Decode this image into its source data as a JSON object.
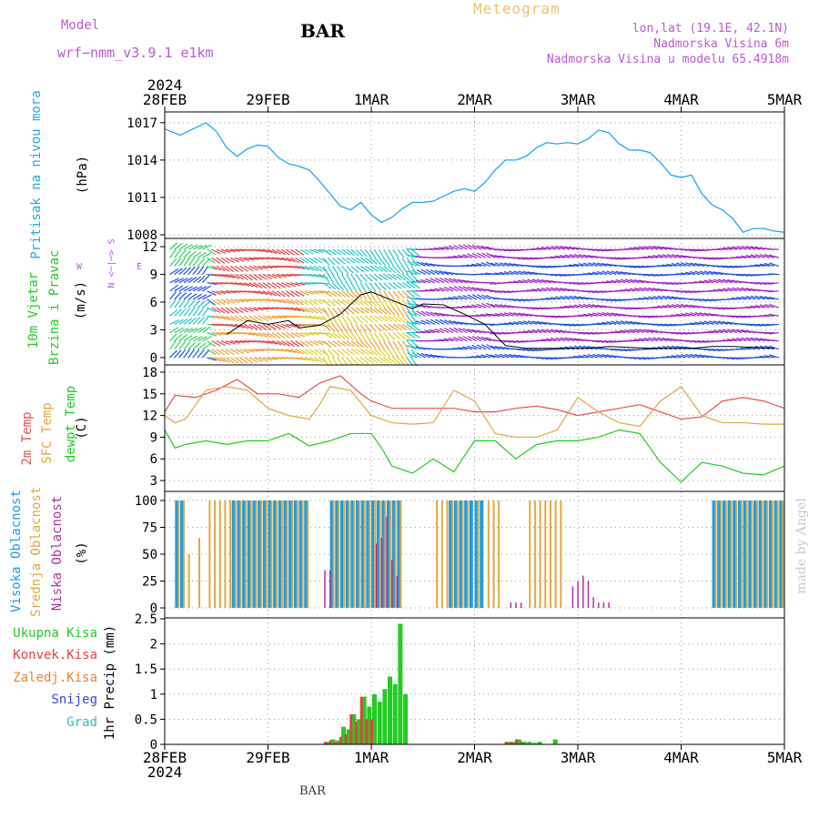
{
  "header": {
    "title": "BAR",
    "product": "Meteogram",
    "model_label": "Model",
    "model_name": "wrf−nmm_v3.9.1  e1km",
    "location": "lon,lat (19.1E, 42.1N)",
    "elevation": "Nadmorska Visina 6m",
    "model_elevation": "Nadmorska Visina u modelu 65.4918m",
    "year": "2024",
    "footer": "BAR",
    "credit": "made by Angel"
  },
  "axes": {
    "dates": [
      "28FEB",
      "29FEB",
      "1MAR",
      "2MAR",
      "3MAR",
      "4MAR",
      "5MAR"
    ]
  },
  "labels": {
    "pressure": [
      "Pritisak na nivou mora"
    ],
    "pressure_unit": "(hPa)",
    "wind": [
      "10m Vjetar",
      "Brzina i Pravac"
    ],
    "wind_unit": "(m/s)",
    "compass_ns": "N <─|─> S",
    "compass_w": "W",
    "compass_e": "E",
    "temp": [
      "2m Temp",
      "SFC Temp",
      "dewpt Temp"
    ],
    "temp_unit": "(C)",
    "cloud": [
      "Visoka Oblacnost",
      "Srednja Oblacnost",
      "Niska Oblacnost"
    ],
    "cloud_unit": "(%)",
    "precip": [
      "Ukupna Kisa",
      "Konvek.Kisa",
      "Zaledj.Kisa",
      "Snijeg",
      "Grad"
    ],
    "precip_unit": "1hr Precip (mm)"
  },
  "colors": {
    "pressure": "#22a9e8",
    "temp2m": "#e85050",
    "tempsfc": "#e0a840",
    "dewpt": "#22cc22",
    "cloud_high": "#1a9ee8",
    "cloud_mid": "#e0a840",
    "cloud_low": "#b030a0",
    "precip_total": "#22cc22",
    "precip_conv": "#e84040",
    "precip_frz": "#f08030",
    "precip_snow": "#4040e0",
    "precip_hail": "#30c0b0",
    "purple": "#b85ad6"
  },
  "chart_data": [
    {
      "type": "line",
      "title": "",
      "ylabel": "(hPa)",
      "ylim": [
        1008,
        1017.5
      ],
      "yticks": [
        1008,
        1011,
        1014,
        1017
      ],
      "grid": true,
      "x_unit": "days since 28FEB 00Z",
      "series": [
        {
          "name": "Pritisak na nivou mora",
          "x": [
            0,
            0.15,
            0.3,
            0.4,
            0.5,
            0.6,
            0.7,
            0.8,
            0.9,
            1.0,
            1.1,
            1.2,
            1.3,
            1.4,
            1.5,
            1.6,
            1.7,
            1.8,
            1.9,
            2.0,
            2.1,
            2.2,
            2.3,
            2.4,
            2.5,
            2.6,
            2.7,
            2.8,
            2.9,
            3.0,
            3.1,
            3.2,
            3.3,
            3.4,
            3.5,
            3.6,
            3.7,
            3.8,
            3.9,
            4.0,
            4.1,
            4.2,
            4.3,
            4.4,
            4.5,
            4.6,
            4.7,
            4.8,
            4.9,
            5.0,
            5.1,
            5.2,
            5.3,
            5.4,
            5.5,
            5.6,
            5.7,
            5.8,
            5.9,
            6.0
          ],
          "y": [
            1016.5,
            1016.0,
            1016.6,
            1017.0,
            1016.3,
            1015.0,
            1014.3,
            1014.9,
            1015.2,
            1015.1,
            1014.2,
            1013.7,
            1013.5,
            1013.2,
            1012.3,
            1011.3,
            1010.3,
            1010.0,
            1010.6,
            1009.6,
            1009.0,
            1009.4,
            1010.1,
            1010.6,
            1010.6,
            1010.7,
            1011.1,
            1011.5,
            1011.7,
            1011.5,
            1012.2,
            1013.2,
            1014.0,
            1014.0,
            1014.3,
            1015.0,
            1015.4,
            1015.3,
            1015.4,
            1015.3,
            1015.7,
            1016.4,
            1016.2,
            1015.3,
            1014.8,
            1014.8,
            1014.6,
            1013.8,
            1012.8,
            1012.6,
            1012.8,
            1011.3,
            1010.4,
            1010.0,
            1009.3,
            1008.2,
            1008.5,
            1008.5,
            1008.3,
            1008.2
          ]
        }
      ]
    },
    {
      "type": "scatter",
      "title": "",
      "ylabel": "(m/s)",
      "ylim": [
        -0.5,
        12.5
      ],
      "yticks": [
        0,
        3,
        6,
        9,
        12
      ],
      "grid": true,
      "note": "wind barbs colored by speed; black line = speed",
      "series": [
        {
          "name": "10m Vjetar",
          "x": [
            0.6,
            0.8,
            1.0,
            1.2,
            1.3,
            1.5,
            1.7,
            1.9,
            2.0,
            2.2,
            2.4,
            2.5,
            2.7,
            2.9,
            3.1,
            3.3,
            3.5,
            3.7,
            3.9,
            4.1,
            4.3,
            4.5,
            4.7,
            4.9,
            5.1,
            5.3,
            5.5,
            5.7,
            5.9
          ],
          "y": [
            2.5,
            4.0,
            3.6,
            4.0,
            3.2,
            3.5,
            4.7,
            6.8,
            7.1,
            6.2,
            5.3,
            5.8,
            5.7,
            4.7,
            3.6,
            1.3,
            1.0,
            1.0,
            1.0,
            1.0,
            1.2,
            1.1,
            1.0,
            1.0,
            1.0,
            1.2,
            1.2,
            1.1,
            1.0
          ]
        }
      ]
    },
    {
      "type": "line",
      "title": "",
      "ylabel": "(C)",
      "ylim": [
        2,
        18.5
      ],
      "yticks": [
        3,
        6,
        9,
        12,
        15,
        18
      ],
      "grid": true,
      "series": [
        {
          "name": "2m Temp",
          "x": [
            0,
            0.1,
            0.3,
            0.5,
            0.7,
            0.9,
            1.1,
            1.3,
            1.5,
            1.7,
            1.9,
            2.0,
            2.2,
            2.4,
            2.6,
            2.8,
            3.0,
            3.2,
            3.4,
            3.6,
            3.8,
            4.0,
            4.2,
            4.4,
            4.6,
            4.8,
            5.0,
            5.2,
            5.4,
            5.6,
            5.8,
            6.0
          ],
          "y": [
            12.5,
            14.8,
            14.5,
            15.5,
            17.0,
            15.0,
            15.0,
            14.5,
            16.5,
            17.5,
            15.0,
            14.0,
            13.0,
            13.0,
            13.0,
            13.0,
            12.5,
            12.5,
            13.0,
            13.3,
            12.8,
            12.0,
            12.5,
            13.0,
            13.5,
            12.5,
            11.5,
            11.8,
            14.0,
            14.5,
            14.0,
            13.0
          ]
        },
        {
          "name": "SFC Temp",
          "x": [
            0,
            0.1,
            0.2,
            0.4,
            0.6,
            0.8,
            1.0,
            1.2,
            1.4,
            1.5,
            1.6,
            1.8,
            2.0,
            2.2,
            2.4,
            2.6,
            2.8,
            3.0,
            3.2,
            3.4,
            3.6,
            3.8,
            4.0,
            4.2,
            4.4,
            4.6,
            4.8,
            5.0,
            5.2,
            5.4,
            5.6,
            5.8,
            6.0
          ],
          "y": [
            12,
            11,
            11.5,
            15.5,
            16,
            15.5,
            13,
            12,
            11.5,
            13.5,
            16,
            15.5,
            12,
            11,
            10.8,
            11,
            15.5,
            14,
            9.5,
            9,
            9,
            10,
            14.5,
            12.5,
            11,
            10.5,
            14,
            16,
            12,
            11,
            11,
            10.8,
            10.8
          ]
        },
        {
          "name": "dewpt Temp",
          "x": [
            0,
            0.1,
            0.2,
            0.4,
            0.6,
            0.8,
            1.0,
            1.2,
            1.4,
            1.6,
            1.8,
            2.0,
            2.1,
            2.2,
            2.4,
            2.6,
            2.8,
            3.0,
            3.2,
            3.4,
            3.6,
            3.8,
            4.0,
            4.2,
            4.4,
            4.6,
            4.8,
            5.0,
            5.2,
            5.4,
            5.6,
            5.8,
            6.0
          ],
          "y": [
            10,
            7.5,
            8,
            8.5,
            8,
            8.5,
            8.5,
            9.5,
            7.8,
            8.5,
            9.5,
            9.5,
            7.5,
            5,
            4,
            6,
            4.2,
            8.5,
            8.5,
            6,
            8,
            8.5,
            8.5,
            9,
            10,
            9.5,
            5.5,
            2.8,
            5.5,
            5,
            4,
            3.8,
            5
          ]
        }
      ]
    },
    {
      "type": "bar",
      "title": "",
      "ylabel": "(%)",
      "ylim": [
        0,
        100
      ],
      "yticks": [
        0,
        25,
        50,
        75,
        100
      ],
      "grid": true,
      "series": [
        {
          "name": "Visoka Oblacnost",
          "x": [
            0.1,
            0.15,
            0.65,
            0.7,
            0.75,
            0.8,
            0.85,
            0.9,
            0.95,
            1.0,
            1.05,
            1.1,
            1.15,
            1.2,
            1.25,
            1.3,
            1.35,
            1.6,
            1.65,
            1.7,
            1.75,
            1.8,
            1.85,
            1.9,
            1.95,
            2.0,
            2.05,
            2.1,
            2.15,
            2.2,
            2.25,
            2.75,
            2.8,
            2.85,
            2.9,
            2.95,
            3.0,
            3.05,
            5.3,
            5.35,
            5.4,
            5.45,
            5.5,
            5.55,
            5.6,
            5.65,
            5.7,
            5.75,
            5.8,
            5.85,
            5.9,
            5.95
          ],
          "y": [
            100,
            100,
            100,
            100,
            100,
            100,
            100,
            100,
            100,
            100,
            100,
            100,
            100,
            100,
            100,
            100,
            100,
            100,
            100,
            100,
            100,
            100,
            100,
            100,
            100,
            100,
            100,
            100,
            100,
            100,
            100,
            100,
            100,
            100,
            100,
            100,
            100,
            100,
            100,
            100,
            100,
            100,
            100,
            100,
            100,
            100,
            100,
            100,
            100,
            100,
            100,
            100
          ]
        },
        {
          "name": "Srednja Oblacnost",
          "x": [
            0.1,
            0.15,
            0.2,
            0.3,
            0.4,
            0.45,
            0.5,
            0.55,
            0.6,
            0.65,
            0.7,
            0.75,
            0.8,
            0.85,
            0.9,
            0.95,
            1.0,
            1.05,
            1.1,
            1.15,
            1.2,
            1.25,
            1.3,
            1.35,
            1.6,
            1.65,
            1.7,
            1.75,
            1.8,
            1.85,
            1.9,
            1.95,
            2.0,
            2.05,
            2.1,
            2.15,
            2.2,
            2.25,
            2.6,
            2.65,
            2.7,
            2.75,
            2.8,
            2.85,
            2.9,
            3.0,
            3.1,
            3.15,
            3.2,
            3.5,
            3.55,
            3.6,
            3.65,
            3.7,
            3.75,
            3.8,
            5.3,
            5.35,
            5.4,
            5.45,
            5.5,
            5.55,
            5.6,
            5.65,
            5.7,
            5.75,
            5.8,
            5.85,
            5.9,
            5.95
          ],
          "y": [
            100,
            100,
            50,
            65,
            100,
            100,
            100,
            100,
            100,
            100,
            100,
            100,
            100,
            100,
            100,
            100,
            100,
            100,
            100,
            100,
            100,
            100,
            100,
            100,
            100,
            100,
            100,
            100,
            100,
            100,
            100,
            100,
            100,
            100,
            100,
            100,
            100,
            100,
            100,
            100,
            100,
            100,
            100,
            100,
            100,
            100,
            100,
            100,
            100,
            100,
            100,
            100,
            100,
            100,
            100,
            100,
            100,
            100,
            100,
            100,
            100,
            100,
            100,
            100,
            100,
            100,
            100,
            100,
            100,
            100
          ]
        },
        {
          "name": "Niska Oblacnost",
          "x": [
            1.5,
            1.55,
            2.0,
            2.05,
            2.1,
            2.15,
            2.2,
            3.3,
            3.35,
            3.4,
            3.9,
            3.95,
            4.0,
            4.05,
            4.1,
            4.15,
            4.2,
            4.25
          ],
          "y": [
            35,
            35,
            60,
            65,
            85,
            45,
            30,
            5,
            5,
            5,
            20,
            25,
            30,
            25,
            10,
            5,
            5,
            5
          ]
        }
      ]
    },
    {
      "type": "bar",
      "title": "",
      "ylabel": "1hr Precip (mm)",
      "ylim": [
        0,
        2.5
      ],
      "yticks": [
        0,
        0.5,
        1,
        1.5,
        2,
        2.5
      ],
      "grid": true,
      "series": [
        {
          "name": "Ukupna Kisa",
          "x": [
            1.55,
            1.6,
            1.65,
            1.7,
            1.75,
            1.8,
            1.85,
            1.9,
            1.95,
            2.0,
            2.05,
            2.1,
            2.15,
            2.2,
            2.25,
            2.3,
            3.3,
            3.35,
            3.4,
            3.45,
            3.5,
            3.55,
            3.6,
            3.75
          ],
          "y": [
            0.05,
            0.1,
            0.08,
            0.35,
            0.3,
            0.6,
            0.5,
            0.95,
            0.75,
            1.0,
            0.85,
            1.1,
            1.35,
            1.2,
            2.4,
            1.0,
            0.05,
            0.05,
            0.1,
            0.05,
            0.05,
            0.03,
            0.05,
            0.1
          ]
        },
        {
          "name": "Konvek.Kisa",
          "x": [
            1.55,
            1.6,
            1.65,
            1.7,
            1.75,
            1.8,
            1.85,
            1.9,
            1.95,
            2.0,
            3.3,
            3.35,
            3.4,
            3.45
          ],
          "y": [
            0.05,
            0.08,
            0.05,
            0.15,
            0.2,
            0.6,
            0.45,
            0.95,
            0.5,
            0.5,
            0.05,
            0.05,
            0.1,
            0.05
          ]
        }
      ]
    }
  ]
}
